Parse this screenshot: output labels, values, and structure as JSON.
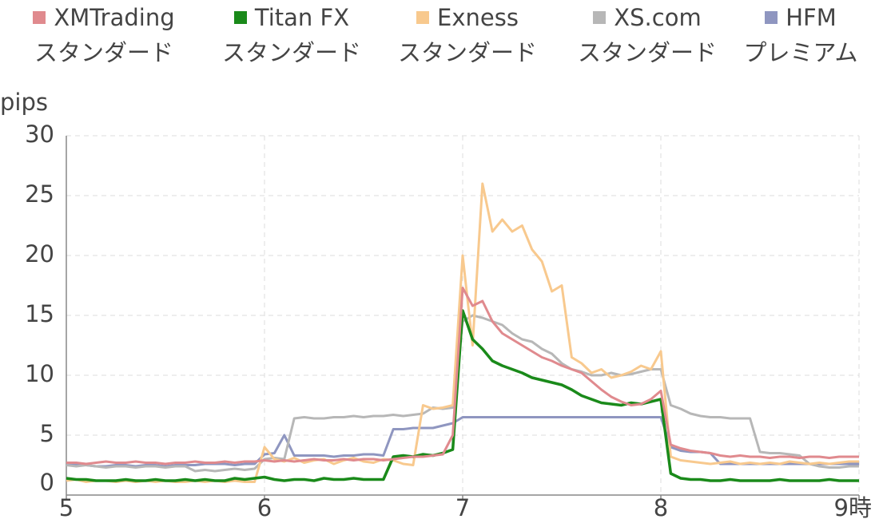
{
  "chart_data": {
    "type": "line",
    "y_label": "pips",
    "x": [
      5,
      5.05,
      5.1,
      5.15,
      5.2,
      5.25,
      5.3,
      5.35,
      5.4,
      5.45,
      5.5,
      5.55,
      5.6,
      5.65,
      5.7,
      5.75,
      5.8,
      5.85,
      5.9,
      5.95,
      6,
      6.05,
      6.1,
      6.15,
      6.2,
      6.25,
      6.3,
      6.35,
      6.4,
      6.45,
      6.5,
      6.55,
      6.6,
      6.65,
      6.7,
      6.75,
      6.8,
      6.85,
      6.9,
      6.95,
      7,
      7.05,
      7.1,
      7.15,
      7.2,
      7.25,
      7.3,
      7.35,
      7.4,
      7.45,
      7.5,
      7.55,
      7.6,
      7.65,
      7.7,
      7.75,
      7.8,
      7.85,
      7.9,
      7.95,
      8,
      8.05,
      8.1,
      8.15,
      8.2,
      8.25,
      8.3,
      8.35,
      8.4,
      8.45,
      8.5,
      8.55,
      8.6,
      8.65,
      8.7,
      8.75,
      8.8,
      8.85,
      8.9,
      8.95,
      9
    ],
    "series": [
      {
        "name": "XMTrading\nスタンダード",
        "color": "#e08a8e",
        "values": [
          2.7,
          2.7,
          2.6,
          2.7,
          2.8,
          2.7,
          2.7,
          2.8,
          2.7,
          2.7,
          2.6,
          2.7,
          2.7,
          2.8,
          2.7,
          2.7,
          2.8,
          2.7,
          2.8,
          2.8,
          2.9,
          2.8,
          2.9,
          2.8,
          2.9,
          3.0,
          2.9,
          2.9,
          3.0,
          2.9,
          3.0,
          3.0,
          2.9,
          3.0,
          3.1,
          3.2,
          3.2,
          3.3,
          3.4,
          5.0,
          17.3,
          15.8,
          16.2,
          14.5,
          13.5,
          13.0,
          12.5,
          12.0,
          11.5,
          11.2,
          10.8,
          10.5,
          10.2,
          9.5,
          8.8,
          8.2,
          7.8,
          7.5,
          7.6,
          8.0,
          8.7,
          4.2,
          3.9,
          3.7,
          3.6,
          3.5,
          3.3,
          3.2,
          3.3,
          3.2,
          3.2,
          3.1,
          3.2,
          3.2,
          3.1,
          3.2,
          3.2,
          3.1,
          3.2,
          3.2,
          3.2
        ]
      },
      {
        "name": "Titan FX\nスタンダード",
        "color": "#1a8a1a",
        "values": [
          1.4,
          1.3,
          1.3,
          1.2,
          1.2,
          1.2,
          1.3,
          1.2,
          1.2,
          1.3,
          1.2,
          1.2,
          1.3,
          1.2,
          1.3,
          1.2,
          1.2,
          1.4,
          1.3,
          1.4,
          1.5,
          1.3,
          1.2,
          1.3,
          1.3,
          1.2,
          1.4,
          1.3,
          1.3,
          1.4,
          1.3,
          1.3,
          1.3,
          3.2,
          3.3,
          3.2,
          3.4,
          3.3,
          3.5,
          3.8,
          15.4,
          13.0,
          12.2,
          11.2,
          10.8,
          10.5,
          10.2,
          9.8,
          9.6,
          9.4,
          9.2,
          8.8,
          8.3,
          8.0,
          7.7,
          7.6,
          7.5,
          7.7,
          7.6,
          7.8,
          8.0,
          1.8,
          1.4,
          1.3,
          1.3,
          1.2,
          1.2,
          1.3,
          1.2,
          1.2,
          1.2,
          1.2,
          1.3,
          1.2,
          1.2,
          1.2,
          1.2,
          1.3,
          1.2,
          1.2,
          1.2
        ]
      },
      {
        "name": "Exness\nスタンダード",
        "color": "#f8c98e",
        "values": [
          1.2,
          1.3,
          1.1,
          1.2,
          1.2,
          1.1,
          1.2,
          1.1,
          1.2,
          1.1,
          1.2,
          1.1,
          1.1,
          1.2,
          1.1,
          1.2,
          1.1,
          1.2,
          1.1,
          1.1,
          4.0,
          3.0,
          2.8,
          3.1,
          2.7,
          2.9,
          3.0,
          2.6,
          2.9,
          3.1,
          2.8,
          2.7,
          3.0,
          2.9,
          2.6,
          2.5,
          7.5,
          7.2,
          7.3,
          7.5,
          20.0,
          12.5,
          26.0,
          22.0,
          23.0,
          22.0,
          22.5,
          20.5,
          19.5,
          17.0,
          17.5,
          11.5,
          11.0,
          10.2,
          10.5,
          9.8,
          10.0,
          10.3,
          10.8,
          10.5,
          12.0,
          3.2,
          2.9,
          2.8,
          2.7,
          2.6,
          2.7,
          2.8,
          2.6,
          2.7,
          2.6,
          2.7,
          2.6,
          2.8,
          2.7,
          2.6,
          2.7,
          2.6,
          2.7,
          2.8,
          2.8
        ]
      },
      {
        "name": "XS.com\nスタンダード",
        "color": "#b7b7b7",
        "values": [
          2.5,
          2.4,
          2.5,
          2.4,
          2.3,
          2.4,
          2.4,
          2.3,
          2.4,
          2.4,
          2.3,
          2.4,
          2.4,
          2.0,
          2.1,
          2.0,
          2.1,
          2.2,
          2.1,
          2.2,
          3.0,
          3.1,
          3.0,
          6.4,
          6.5,
          6.4,
          6.4,
          6.5,
          6.5,
          6.6,
          6.5,
          6.6,
          6.6,
          6.7,
          6.6,
          6.7,
          6.8,
          7.3,
          7.2,
          7.3,
          14.5,
          15.0,
          14.8,
          14.5,
          14.2,
          13.5,
          13.0,
          12.8,
          12.2,
          11.8,
          11.0,
          10.5,
          10.3,
          10.0,
          10.0,
          10.2,
          10.0,
          10.1,
          10.3,
          10.5,
          10.5,
          7.5,
          7.2,
          6.8,
          6.6,
          6.5,
          6.5,
          6.4,
          6.4,
          6.4,
          3.6,
          3.5,
          3.5,
          3.4,
          3.3,
          2.6,
          2.4,
          2.3,
          2.3,
          2.4,
          2.4
        ]
      },
      {
        "name": "HFM\nプレミアム",
        "color": "#8f96c0",
        "values": [
          2.6,
          2.5,
          2.5,
          2.4,
          2.4,
          2.5,
          2.5,
          2.4,
          2.5,
          2.5,
          2.4,
          2.5,
          2.5,
          2.5,
          2.6,
          2.6,
          2.6,
          2.5,
          2.6,
          2.6,
          3.4,
          3.5,
          5.0,
          3.3,
          3.3,
          3.3,
          3.3,
          3.2,
          3.3,
          3.3,
          3.4,
          3.4,
          3.3,
          5.5,
          5.5,
          5.6,
          5.6,
          5.6,
          5.8,
          6.0,
          6.5,
          6.5,
          6.5,
          6.5,
          6.5,
          6.5,
          6.5,
          6.5,
          6.5,
          6.5,
          6.5,
          6.5,
          6.5,
          6.5,
          6.5,
          6.5,
          6.5,
          6.5,
          6.5,
          6.5,
          6.5,
          4.0,
          3.7,
          3.6,
          3.6,
          3.5,
          2.6,
          2.6,
          2.6,
          2.6,
          2.6,
          2.6,
          2.6,
          2.6,
          2.6,
          2.6,
          2.6,
          2.6,
          2.6,
          2.6,
          2.6
        ]
      }
    ],
    "xlim": [
      5,
      9
    ],
    "xticks": [
      5,
      6,
      7,
      8,
      {
        "value": 9,
        "label": "9時"
      }
    ],
    "ylim": [
      0,
      30
    ],
    "yticks": [
      0,
      5,
      10,
      15,
      20,
      25,
      30
    ],
    "grid": true
  }
}
